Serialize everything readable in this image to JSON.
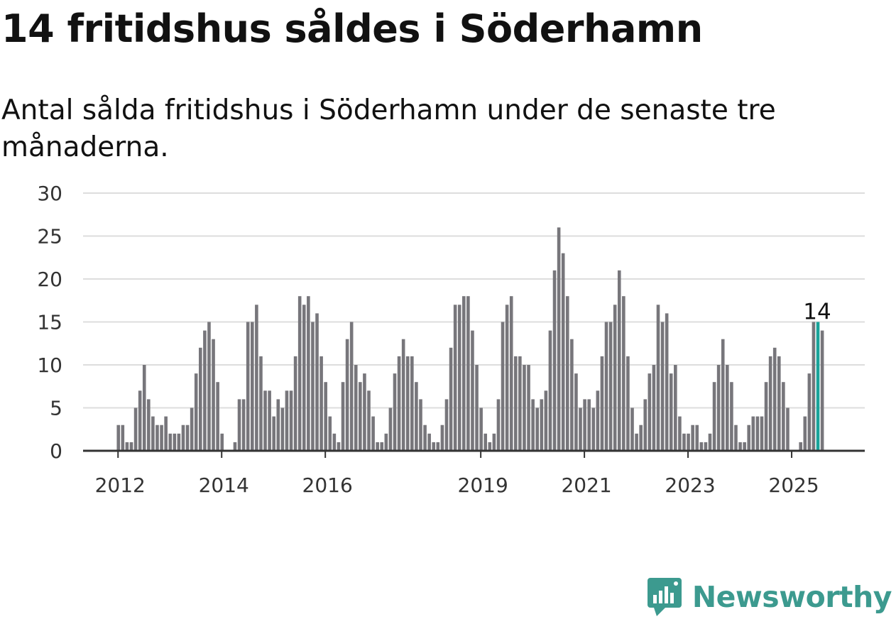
{
  "title": "14 fritidshus såldes i Söderhamn",
  "subtitle": "Antal sålda fritidshus i Söderhamn under de senaste tre månaderna.",
  "brand": {
    "name": "Newsworthy",
    "icon": "newsworthy-logo-icon",
    "color": "#3c9a8f"
  },
  "colors": {
    "bar": "#77767b",
    "highlight": "#1aa39a",
    "grid": "#dddddd",
    "axis": "#333333"
  },
  "chart_data": {
    "type": "bar",
    "title": "",
    "xlabel": "",
    "ylabel": "",
    "ylim": [
      0,
      30
    ],
    "yticks": [
      0,
      5,
      10,
      15,
      20,
      25,
      30
    ],
    "grid": true,
    "x_start": "2011-10",
    "x_end": "2025-07",
    "xticks": [
      {
        "label": "2012",
        "at": "2012-01"
      },
      {
        "label": "2014",
        "at": "2014-01"
      },
      {
        "label": "2016",
        "at": "2016-01"
      },
      {
        "label": "2019",
        "at": "2019-01"
      },
      {
        "label": "2021",
        "at": "2021-01"
      },
      {
        "label": "2023",
        "at": "2023-01"
      },
      {
        "label": "2025",
        "at": "2025-01"
      }
    ],
    "highlight": {
      "month": "2025-07",
      "value": 14,
      "label": "14"
    },
    "series": [
      {
        "values": [
          0,
          0,
          0,
          3,
          3,
          1,
          1,
          5,
          7,
          10,
          6,
          4,
          3,
          3,
          4,
          2,
          2,
          2,
          3,
          3,
          5,
          9,
          12,
          14,
          15,
          13,
          8,
          2,
          0,
          0,
          1,
          6,
          6,
          15,
          15,
          17,
          11,
          7,
          7,
          4,
          6,
          5,
          7,
          7,
          11,
          18,
          17,
          18,
          15,
          16,
          11,
          8,
          4,
          2,
          1,
          8,
          13,
          15,
          10,
          8,
          9,
          7,
          4,
          1,
          1,
          2,
          5,
          9,
          11,
          13,
          11,
          11,
          8,
          6,
          3,
          2,
          1,
          1,
          3,
          6,
          12,
          17,
          17,
          18,
          18,
          14,
          10,
          5,
          2,
          1,
          2,
          6,
          15,
          17,
          18,
          11,
          11,
          10,
          10,
          6,
          5,
          6,
          7,
          14,
          21,
          26,
          23,
          18,
          13,
          9,
          5,
          6,
          6,
          5,
          7,
          11,
          15,
          15,
          17,
          21,
          18,
          11,
          5,
          2,
          3,
          6,
          9,
          10,
          17,
          15,
          16,
          9,
          10,
          4,
          2,
          2,
          3,
          3,
          1,
          1,
          2,
          8,
          10,
          13,
          10,
          8,
          3,
          1,
          1,
          3,
          4,
          4,
          4,
          8,
          11,
          12,
          11,
          8,
          5,
          0,
          0,
          1,
          4,
          9,
          15,
          15,
          14
        ]
      }
    ]
  }
}
